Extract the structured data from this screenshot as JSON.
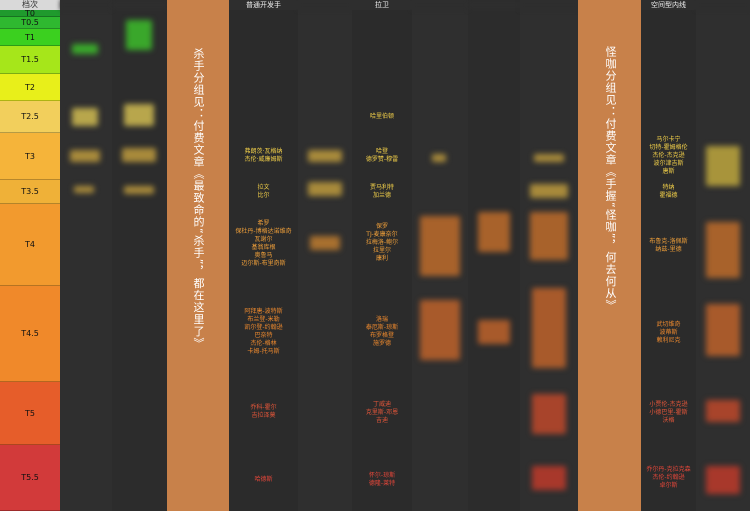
{
  "tier_column": {
    "header": "档次",
    "tiers": [
      "T0",
      "T0.5",
      "T1",
      "T1.5",
      "T2",
      "T2.5",
      "T3",
      "T3.5",
      "T4",
      "T4.5",
      "T5",
      "T5.5"
    ]
  },
  "columns": {
    "regular_dev": {
      "header": "普通开发手",
      "t3": [
        "弗朗茨·瓦格纳",
        "杰伦·威廉姆斯"
      ],
      "t3_5": [
        "拉文",
        "比尔"
      ],
      "t4": [
        "希罗",
        "保杜丹-博格达诺维奇",
        "瓦谢尔",
        "基翁库根",
        "奥鲁马",
        "迈尔斯-布里奇斯"
      ],
      "t4_5": [
        "阿拜唐-波特斯",
        "布兰登-米勒",
        "凯尔登-约翰逊",
        "巴奈特",
        "杰伦-格林",
        "卡姆-托马斯"
      ],
      "t5": [
        "乔科-霍尔",
        "吉拉泽莫"
      ],
      "t5_5": [
        "哈德斯"
      ]
    },
    "guard": {
      "header": "拉卫",
      "t2_5": [
        "哈里伯顿"
      ],
      "t3": [
        "哈登",
        "德罗赞-穆雷"
      ],
      "t3_5": [
        "贾马利特",
        "加兰德"
      ],
      "t4": [
        "保罗",
        "TJ-麦康奈尔",
        "拉梅洛-鲍尔",
        "拉里尔",
        "康利"
      ],
      "t4_5": [
        "洛瑞",
        "泰厄斯-琼斯",
        "布罗格登",
        "施罗德"
      ],
      "t5": [
        "丁威迪",
        "克里斯-邓恩",
        "吉迪"
      ],
      "t5_5": [
        "怀尔-琼斯",
        "德隆-莱特"
      ]
    },
    "space": {
      "header": "空间型内线",
      "t3": [
        "马尔卡宁",
        "切特-霍姆格伦",
        "杰伦-杰克逊",
        "波尔津吉斯",
        "唐斯"
      ],
      "t3_5": [
        "特纳",
        "霍福德"
      ],
      "t4": [
        "布鲁克-洛佩斯",
        "纳兹-里德"
      ],
      "t4_5": [
        "武切维奇",
        "波蒂斯",
        "赖利尼克"
      ],
      "t5": [
        "小贾伦-杰克逊",
        "小德巴里-霍斯",
        "沃格"
      ],
      "t5_5": [
        "乔尔丹-克拉克森",
        "杰伦-约翰逊",
        "卓尔斯"
      ]
    }
  },
  "band_left": "杀手分组见：付费文章《最致命的“杀手”，都在这里了》",
  "band_right": "怪咖分组见：付费文章《手握“怪咖”，何去何从》",
  "colors": {
    "background": "#333333",
    "band": "#c8814a",
    "tiers": [
      "#1f9a2d",
      "#2fb830",
      "#3bd01f",
      "#a6e61a",
      "#e8ef1a",
      "#f2cf5c",
      "#f5b43a",
      "#efb138",
      "#f29a2e",
      "#f0892a",
      "#e65d2a",
      "#d23a3a"
    ]
  }
}
